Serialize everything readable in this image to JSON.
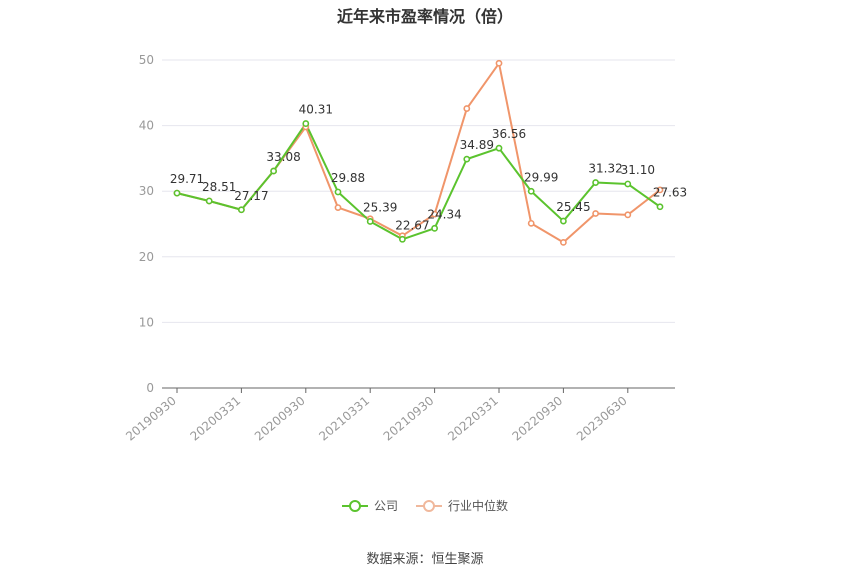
{
  "title": "近年来市盈率情况（倍）",
  "source": "数据来源：恒生聚源",
  "colors": {
    "company": "#5bc32e",
    "industry": "#f0956a",
    "grid": "#e6e6ee",
    "axis": "#666666",
    "tick": "#999999"
  },
  "chart_data": {
    "type": "line",
    "x_tick_labels": [
      "20190930",
      "20200331",
      "20200930",
      "20210331",
      "20210930",
      "20220331",
      "20220930",
      "20230630"
    ],
    "x_tick_index": [
      0,
      2,
      4,
      6,
      8,
      10,
      12,
      14
    ],
    "ylim": [
      0,
      50
    ],
    "yticks": [
      0,
      10,
      20,
      30,
      40,
      50
    ],
    "grid": true,
    "legend": "bottom-center",
    "series": [
      {
        "name": "公司",
        "color": "#5bc32e",
        "values": [
          29.71,
          28.51,
          27.17,
          33.08,
          40.31,
          29.88,
          25.39,
          22.67,
          24.34,
          34.89,
          36.56,
          29.99,
          25.45,
          31.32,
          31.1,
          27.63
        ],
        "labels": [
          "29.71",
          "28.51",
          "27.17",
          "33.08",
          "40.31",
          "29.88",
          "25.39",
          "22.67",
          "24.34",
          "34.89",
          "36.56",
          "29.99",
          "25.45",
          "31.32",
          "31.10",
          "27.63"
        ]
      },
      {
        "name": "行业中位数",
        "color": "#f0956a",
        "values": [
          29.71,
          28.51,
          27.17,
          33.08,
          39.8,
          27.5,
          25.8,
          23.2,
          26.5,
          42.6,
          49.5,
          25.1,
          22.2,
          26.6,
          26.4,
          30.2
        ]
      }
    ]
  }
}
